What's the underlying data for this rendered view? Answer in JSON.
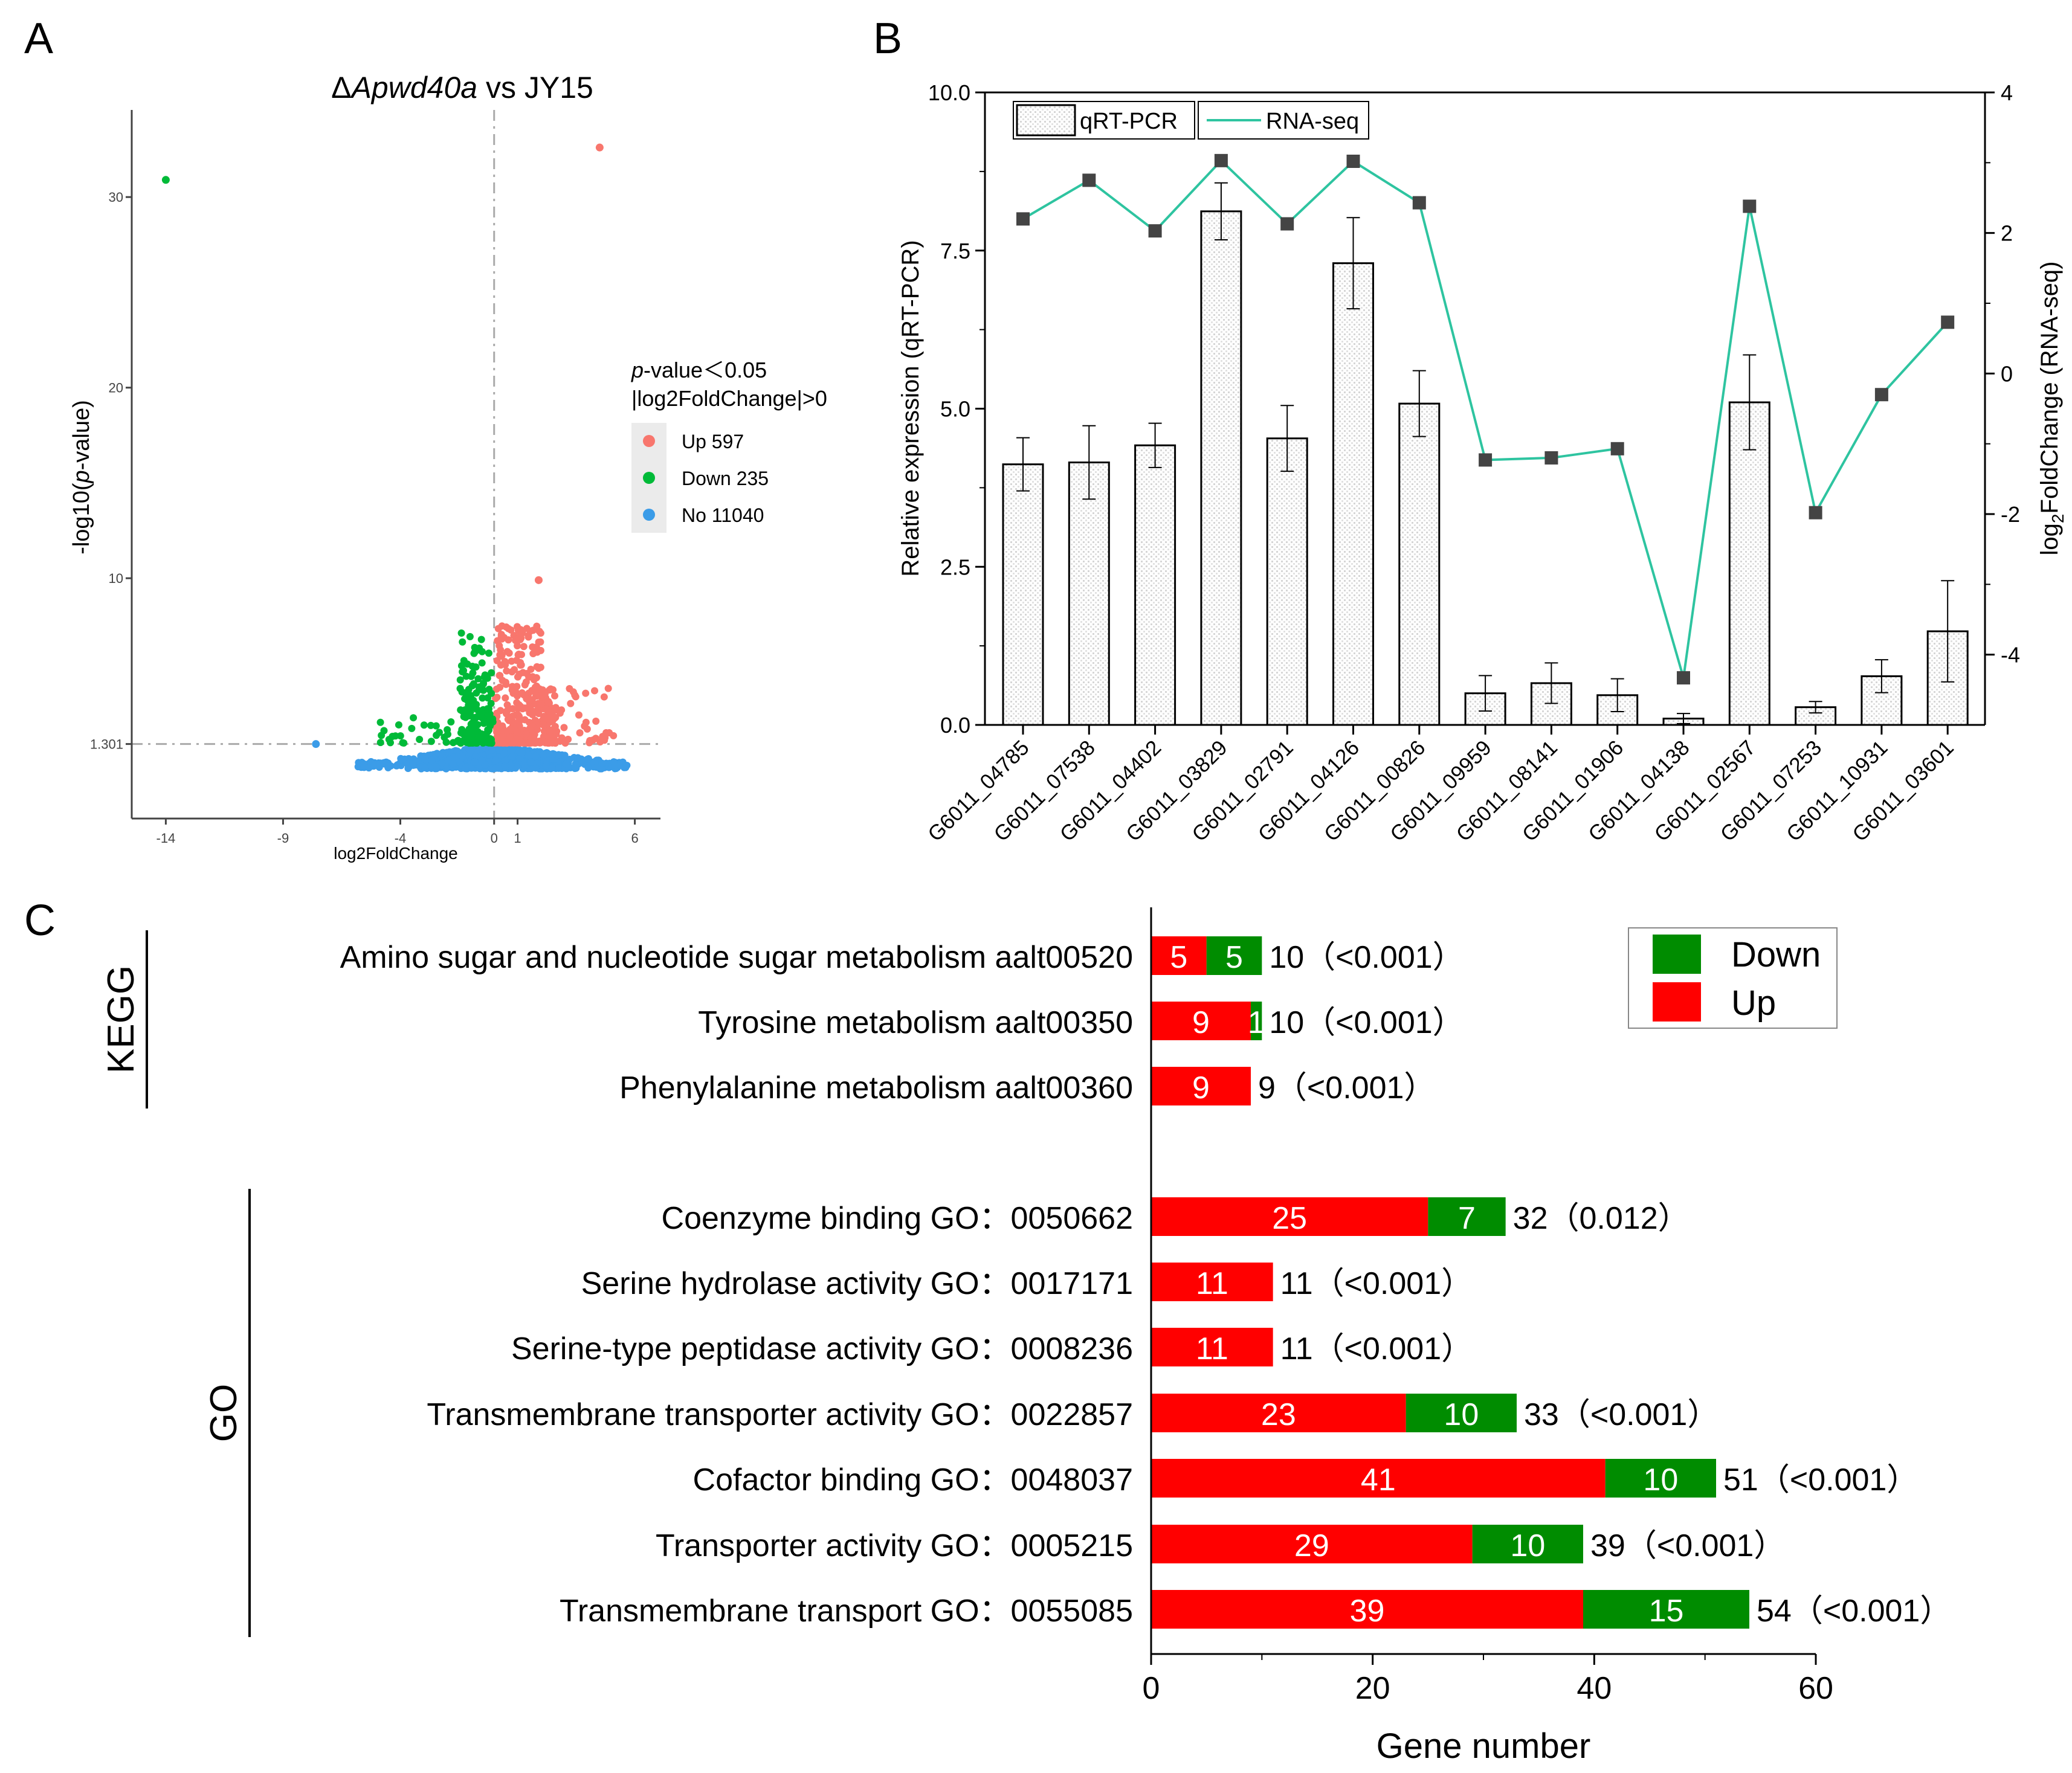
{
  "panel_labels": {
    "a": "A",
    "b": "B",
    "c": "C"
  },
  "chart_data": [
    {
      "panel": "A",
      "type": "scatter",
      "title_prefix": "Δ",
      "title_italic": "Apwd40a",
      "title_suffix": " vs JY15",
      "xlabel": "log2FoldChange",
      "ylabel_prefix": "-log10(",
      "ylabel_italic": "p",
      "ylabel_suffix": "-value)",
      "xlim": [
        -14.5,
        6.5
      ],
      "ylim": [
        -1.5,
        34
      ],
      "xticks": [
        -14,
        -9,
        -4,
        0,
        1,
        6
      ],
      "xtick_labels": [
        "-14",
        "-9",
        "-4",
        "0",
        "1",
        "6"
      ],
      "yticks": [
        1.301,
        10,
        20,
        30
      ],
      "ytick_labels": [
        "1.301",
        "10",
        "20",
        "30"
      ],
      "threshold_y": 1.301,
      "threshold_x": 0,
      "legend_title_italic": "p",
      "legend_title_rest": "-value＜0.05",
      "legend_subtitle": "|log2FoldChange|>0",
      "legend": [
        {
          "label": "Up 597",
          "color": "#f8766d"
        },
        {
          "label": "Down  235",
          "color": "#00ba38"
        },
        {
          "label": "No 11040",
          "color": "#3b9ce8"
        }
      ],
      "highlight_points": [
        {
          "x": -14,
          "y": 30.9,
          "group": "down"
        },
        {
          "x": 4.5,
          "y": 32.6,
          "group": "up"
        },
        {
          "x": -7.6,
          "y": 1.3,
          "group": "no"
        },
        {
          "x": 1.9,
          "y": 9.9,
          "group": "up"
        }
      ]
    },
    {
      "panel": "B",
      "type": "bar",
      "categories": [
        "G6011_04785",
        "G6011_07538",
        "G6011_04402",
        "G6011_03829",
        "G6011_02791",
        "G6011_04126",
        "G6011_00826",
        "G6011_09959",
        "G6011_08141",
        "G6011_01906",
        "G6011_04138",
        "G6011_02567",
        "G6011_07253",
        "G6011_10931",
        "G6011_03601"
      ],
      "series": [
        {
          "name": "qRT-PCR",
          "type": "bar",
          "axis": "left",
          "values": [
            4.12,
            4.15,
            4.42,
            8.12,
            4.53,
            7.3,
            5.08,
            0.5,
            0.66,
            0.47,
            0.1,
            5.1,
            0.28,
            0.77,
            1.48
          ],
          "errors": [
            0.42,
            0.58,
            0.35,
            0.45,
            0.52,
            0.72,
            0.52,
            0.28,
            0.32,
            0.26,
            0.08,
            0.75,
            0.09,
            0.26,
            0.8
          ]
        },
        {
          "name": "RNA-seq",
          "type": "line",
          "axis": "right",
          "values": [
            2.2,
            2.75,
            2.03,
            3.03,
            2.13,
            3.02,
            2.43,
            -1.23,
            -1.2,
            -1.07,
            -4.33,
            2.38,
            -1.98,
            -0.3,
            0.73
          ]
        }
      ],
      "ylabel": "Relative expression (qRT-PCR)",
      "y2label_prefix": "log",
      "y2label_sub": "2",
      "y2label_suffix": "FoldChange (RNA-seq)",
      "ylim": [
        0,
        10
      ],
      "y2lim": [
        -5,
        4
      ],
      "yticks": [
        0,
        2.5,
        5,
        7.5,
        10
      ],
      "ytick_labels": [
        "0.0",
        "2.5",
        "5.0",
        "7.5",
        "10.0"
      ],
      "y2ticks": [
        -4,
        -2,
        0,
        2,
        4
      ],
      "y2tick_labels": [
        "-4",
        "-2",
        "0",
        "2",
        "4"
      ],
      "legend_position": "top-left"
    },
    {
      "panel": "C",
      "type": "bar",
      "orientation": "horizontal-stacked",
      "xlabel": "Gene number",
      "xlim": [
        0,
        60
      ],
      "xticks": [
        0,
        20,
        40,
        60
      ],
      "xtick_labels": [
        "0",
        "20",
        "40",
        "60"
      ],
      "legend": [
        {
          "label": "Down",
          "color": "#008c00"
        },
        {
          "label": "Up",
          "color": "#ff0000"
        }
      ],
      "groups": [
        {
          "label": "KEGG",
          "rows": [
            0,
            1,
            2
          ]
        },
        {
          "label": "GO",
          "rows": [
            3,
            4,
            5,
            6,
            7,
            8,
            9
          ]
        }
      ],
      "rows": [
        {
          "label": "Amino sugar and nucleotide sugar metabolism aalt00520",
          "up": 5,
          "down": 5,
          "up_label": "5",
          "down_label": "5",
          "total_label": "10（<0.001）"
        },
        {
          "label": "Tyrosine metabolism aalt00350",
          "up": 9,
          "down": 1,
          "up_label": "9",
          "down_label": "1",
          "total_label": "10（<0.001）"
        },
        {
          "label": "Phenylalanine metabolism aalt00360",
          "up": 9,
          "down": 0,
          "up_label": "9",
          "down_label": "",
          "total_label": "9（<0.001）"
        },
        {
          "label": "Coenzyme binding GO：0050662",
          "up": 25,
          "down": 7,
          "up_label": "25",
          "down_label": "7",
          "total_label": "32（0.012）"
        },
        {
          "label": "Serine hydrolase activity GO：0017171",
          "up": 11,
          "down": 0,
          "up_label": "11",
          "down_label": "",
          "total_label": "11（<0.001）"
        },
        {
          "label": "Serine-type peptidase activity GO：0008236",
          "up": 11,
          "down": 0,
          "up_label": "11",
          "down_label": "",
          "total_label": "11（<0.001）"
        },
        {
          "label": "Transmembrane transporter activity GO：0022857",
          "up": 23,
          "down": 10,
          "up_label": "23",
          "down_label": "10",
          "total_label": "33（<0.001）"
        },
        {
          "label": "Cofactor binding GO：0048037",
          "up": 41,
          "down": 10,
          "up_label": "41",
          "down_label": "10",
          "total_label": "51（<0.001）"
        },
        {
          "label": "Transporter activity GO：0005215",
          "up": 29,
          "down": 10,
          "up_label": "29",
          "down_label": "10",
          "total_label": "39（<0.001）"
        },
        {
          "label": "Transmembrane transport GO：0055085",
          "up": 39,
          "down": 15,
          "up_label": "39",
          "down_label": "15",
          "total_label": "54（<0.001）"
        }
      ]
    }
  ]
}
